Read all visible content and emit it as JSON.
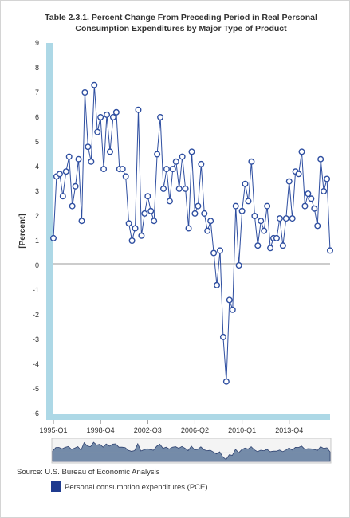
{
  "chart_data": {
    "type": "line",
    "title_line1": "Table 2.3.1. Percent Change From Preceding Period in Real Personal",
    "title_line2": "Consumption Expenditures by Major Type of Product",
    "ylabel": "[Percent]",
    "ylim": [
      -6,
      9
    ],
    "yticks": [
      -6,
      -5,
      -4,
      -3,
      -2,
      -1,
      0,
      1,
      2,
      3,
      4,
      5,
      6,
      7,
      8,
      9
    ],
    "xtick_labels": [
      "1995-Q1",
      "1998-Q4",
      "2002-Q3",
      "2006-Q2",
      "2010-Q1",
      "2013-Q4"
    ],
    "xtick_indices": [
      0,
      15,
      30,
      45,
      60,
      75
    ],
    "grid": false,
    "line_color": "#2e4ea0",
    "marker_fill": "#ffffff",
    "axis_band_color": "#add8e6",
    "zero_line_color": "#999999",
    "navigator_fill": "#4a6890",
    "series": [
      {
        "name": "Personal consumption expenditures (PCE)",
        "color": "#1f3b8f",
        "values": [
          1.1,
          3.6,
          3.7,
          2.8,
          3.8,
          4.4,
          2.4,
          3.2,
          4.3,
          1.8,
          7.0,
          4.8,
          4.2,
          7.3,
          5.4,
          6.0,
          3.9,
          6.1,
          4.6,
          6.0,
          6.2,
          3.9,
          3.9,
          3.6,
          1.7,
          1.0,
          1.5,
          6.3,
          1.2,
          2.1,
          2.8,
          2.2,
          1.8,
          4.5,
          6.0,
          3.1,
          3.9,
          2.6,
          3.9,
          4.2,
          3.1,
          4.4,
          3.1,
          1.5,
          4.6,
          2.1,
          2.4,
          4.1,
          2.1,
          1.4,
          1.8,
          0.5,
          -0.8,
          0.6,
          -2.9,
          -4.7,
          -1.4,
          -1.8,
          2.4,
          0.0,
          2.2,
          3.3,
          2.6,
          4.2,
          2.0,
          0.8,
          1.8,
          1.4,
          2.4,
          0.7,
          1.1,
          1.1,
          1.9,
          0.8,
          1.9,
          3.4,
          1.9,
          3.8,
          3.7,
          4.6,
          2.4,
          2.9,
          2.7,
          2.3,
          1.6,
          4.3,
          3.0,
          3.5,
          0.6
        ]
      }
    ]
  },
  "source": "Source: U.S. Bureau of Economic Analysis",
  "legend_label": "Personal consumption expenditures (PCE)"
}
